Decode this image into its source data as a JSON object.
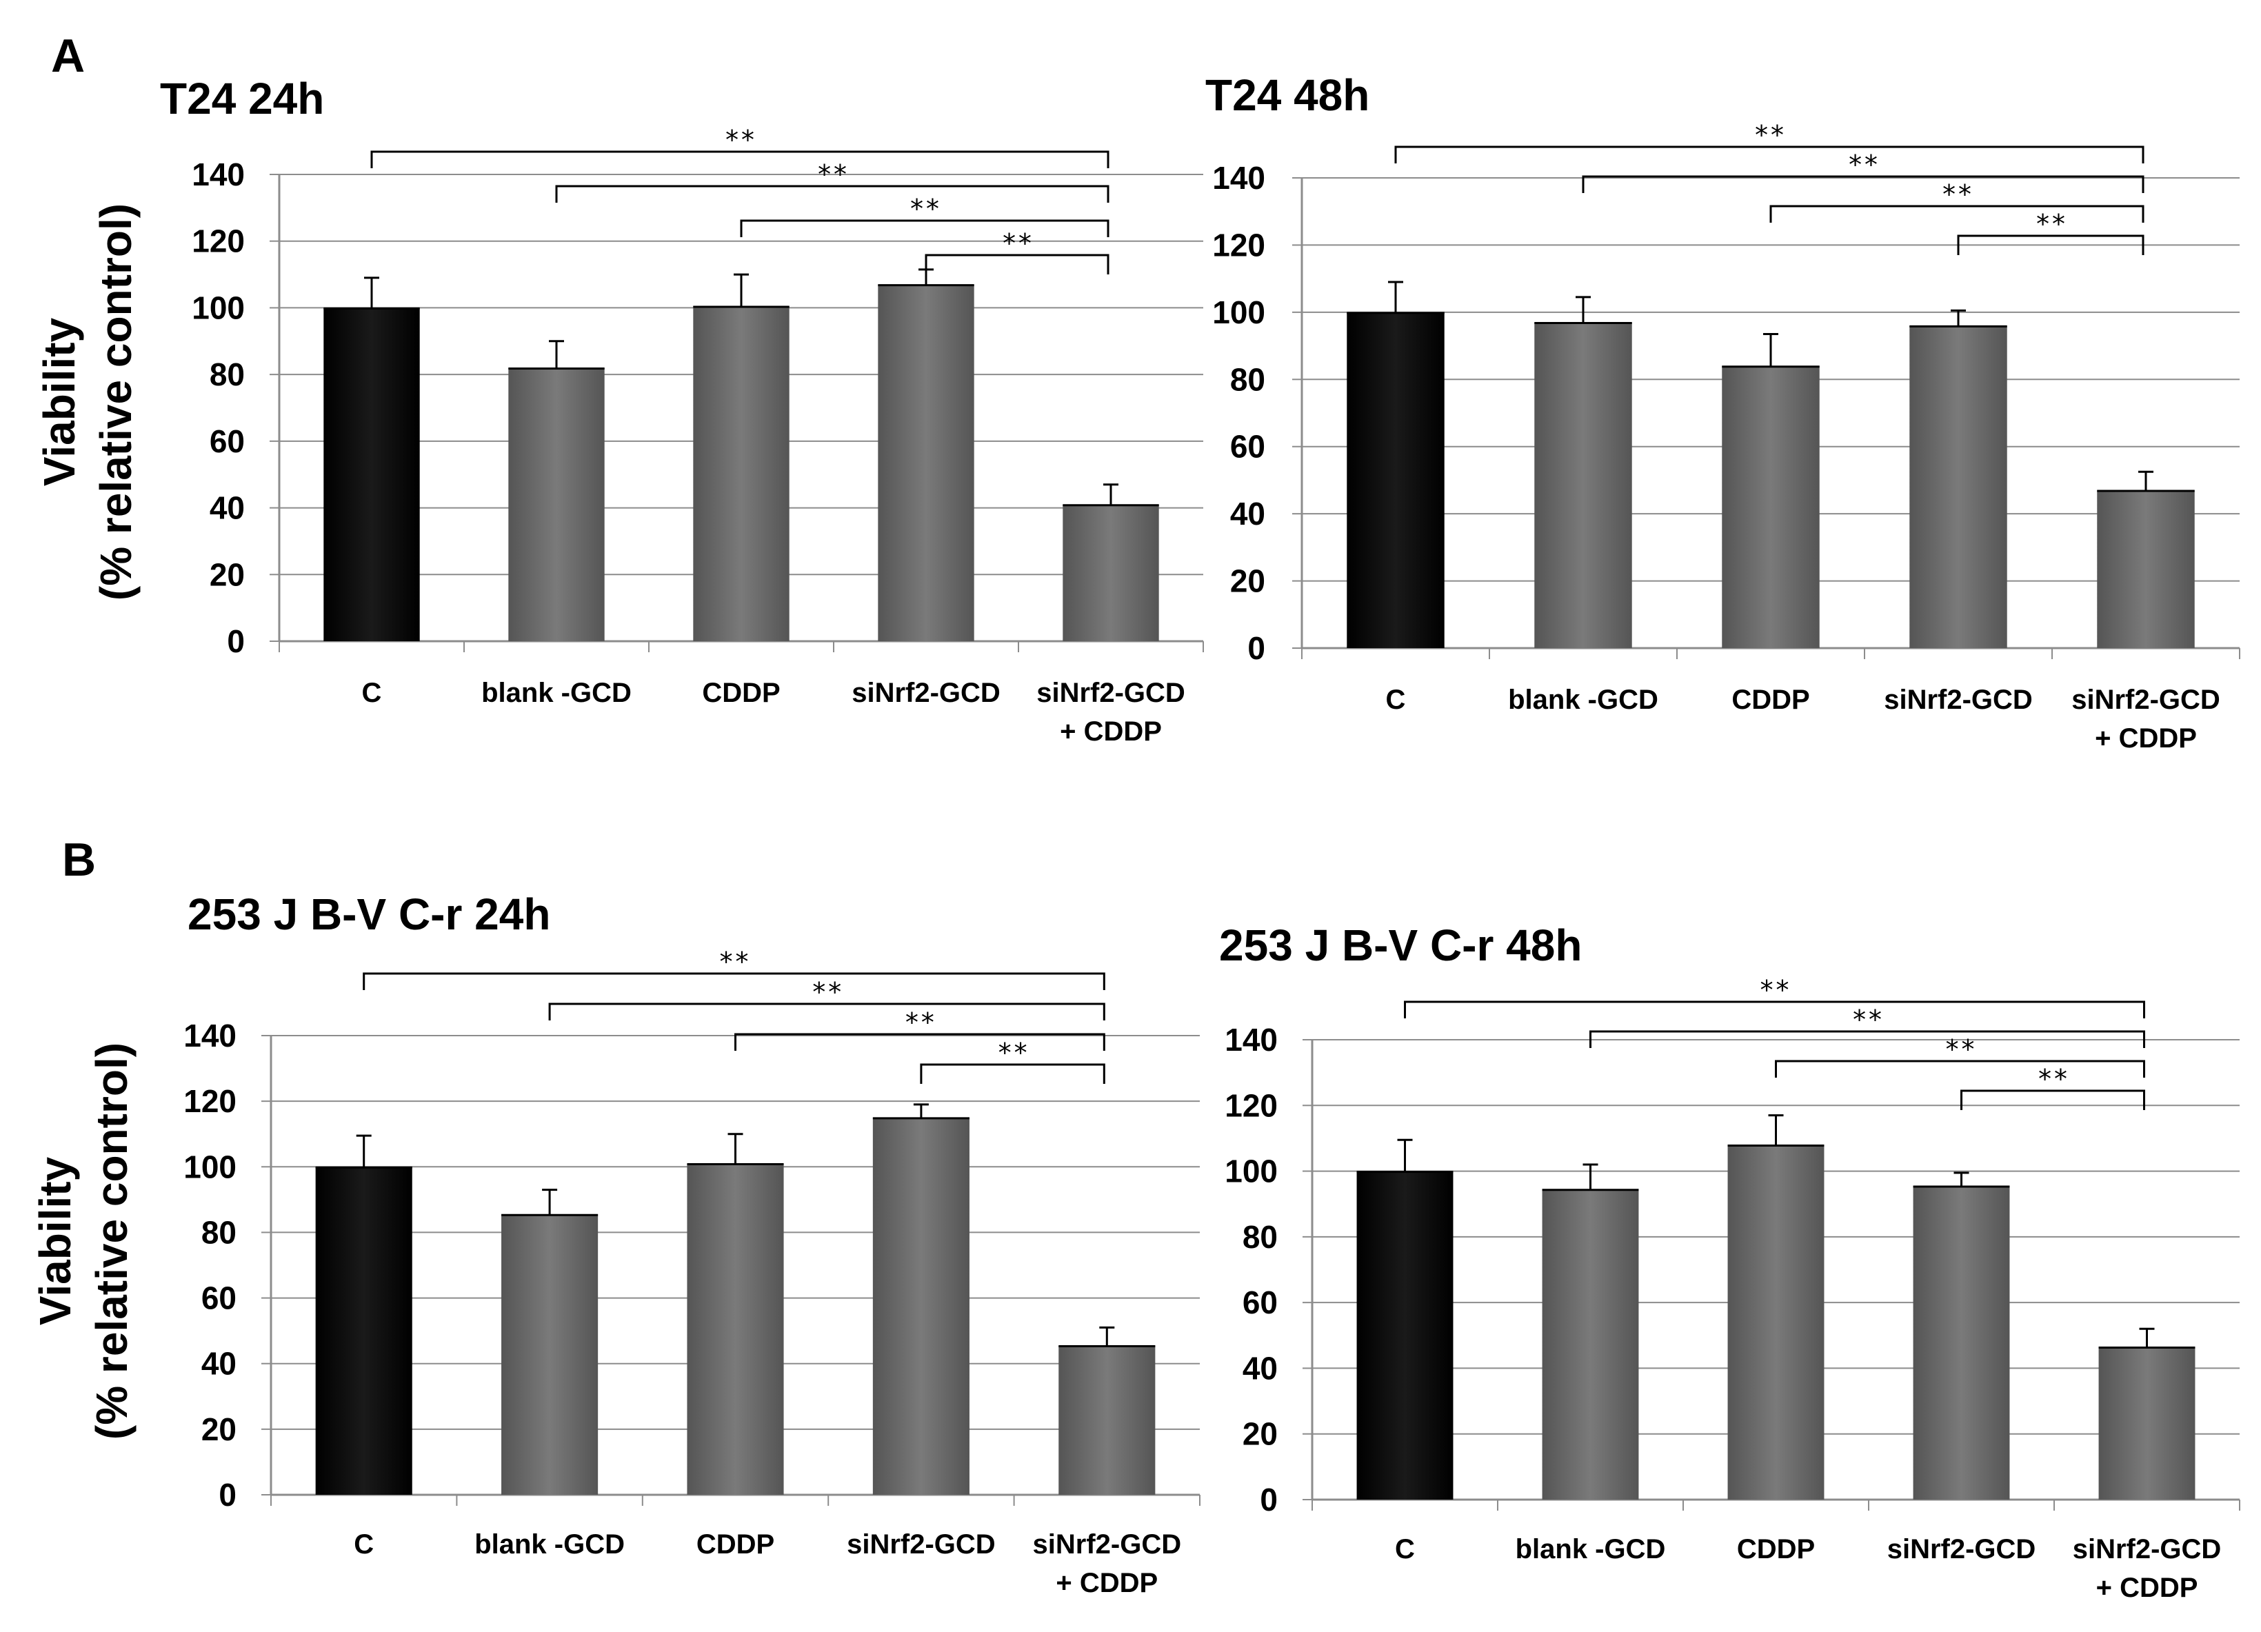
{
  "figure": {
    "panels": [
      {
        "letter": "A"
      },
      {
        "letter": "B"
      }
    ],
    "y_axis_label_line1": "Viability",
    "y_axis_label_line2": "(% relative control)"
  },
  "chart_data": [
    {
      "type": "bar",
      "panel": "A",
      "title": "T24 24h",
      "categories": [
        "C",
        "blank -GCD",
        "CDDP",
        "siNrf2-GCD",
        "siNrf2-GCD\n+ CDDP"
      ],
      "values": [
        100,
        82,
        100.5,
        107,
        41
      ],
      "errors": [
        9,
        8,
        9.5,
        4.5,
        6
      ],
      "ylim": [
        0,
        140
      ],
      "ytick_step": 20,
      "ytick_labels": [
        "0",
        "20",
        "40",
        "60",
        "80",
        "100",
        "120",
        "140"
      ],
      "xlabel": "",
      "ylabel": "Viability (% relative control)",
      "grid": true,
      "colors": [
        "#000000",
        "#6e6e6e",
        "#6e6e6e",
        "#6e6e6e",
        "#6e6e6e"
      ],
      "significance": [
        {
          "from": 0,
          "to": 4,
          "label": "**"
        },
        {
          "from": 1,
          "to": 4,
          "label": "**"
        },
        {
          "from": 2,
          "to": 4,
          "label": "**"
        },
        {
          "from": 3,
          "to": 4,
          "label": "**"
        }
      ]
    },
    {
      "type": "bar",
      "panel": "A",
      "title": "T24 48h",
      "categories": [
        "C",
        "blank -GCD",
        "CDDP",
        "siNrf2-GCD",
        "siNrf2-GCD\n+ CDDP"
      ],
      "values": [
        100,
        97,
        84,
        96,
        47
      ],
      "errors": [
        9,
        7.5,
        9.5,
        4.5,
        5.5
      ],
      "ylim": [
        0,
        140
      ],
      "ytick_step": 20,
      "ytick_labels": [
        "0",
        "20",
        "40",
        "60",
        "80",
        "100",
        "120",
        "140"
      ],
      "xlabel": "",
      "ylabel": "",
      "grid": true,
      "colors": [
        "#000000",
        "#6e6e6e",
        "#6e6e6e",
        "#6e6e6e",
        "#6e6e6e"
      ],
      "significance": [
        {
          "from": 0,
          "to": 4,
          "label": "**"
        },
        {
          "from": 1,
          "to": 4,
          "label": "**"
        },
        {
          "from": 2,
          "to": 4,
          "label": "**"
        },
        {
          "from": 3,
          "to": 4,
          "label": "**"
        }
      ]
    },
    {
      "type": "bar",
      "panel": "B",
      "title": "253 J B-V C-r 24h",
      "categories": [
        "C",
        "blank -GCD",
        "CDDP",
        "siNrf2-GCD",
        "siNrf2-GCD\n+ CDDP"
      ],
      "values": [
        100,
        85.5,
        101,
        115,
        45.5
      ],
      "errors": [
        9.5,
        7.5,
        9,
        4,
        5.5
      ],
      "ylim": [
        0,
        140
      ],
      "ytick_step": 20,
      "ytick_labels": [
        "0",
        "20",
        "40",
        "60",
        "80",
        "100",
        "120",
        "140"
      ],
      "xlabel": "",
      "ylabel": "Viability (% relative control)",
      "grid": true,
      "colors": [
        "#000000",
        "#6e6e6e",
        "#6e6e6e",
        "#6e6e6e",
        "#6e6e6e"
      ],
      "significance": [
        {
          "from": 0,
          "to": 4,
          "label": "**"
        },
        {
          "from": 1,
          "to": 4,
          "label": "**"
        },
        {
          "from": 2,
          "to": 4,
          "label": "**"
        },
        {
          "from": 3,
          "to": 4,
          "label": "**"
        }
      ]
    },
    {
      "type": "bar",
      "panel": "B",
      "title": "253 J B-V C-r 48h",
      "categories": [
        "C",
        "blank -GCD",
        "CDDP",
        "siNrf2-GCD",
        "siNrf2-GCD\n+ CDDP"
      ],
      "values": [
        100,
        94.5,
        108,
        95.5,
        46.5
      ],
      "errors": [
        9.5,
        7.5,
        9,
        4,
        5.5
      ],
      "ylim": [
        0,
        140
      ],
      "ytick_step": 20,
      "ytick_labels": [
        "0",
        "20",
        "40",
        "60",
        "80",
        "100",
        "120",
        "140"
      ],
      "xlabel": "",
      "ylabel": "",
      "grid": true,
      "colors": [
        "#000000",
        "#6e6e6e",
        "#6e6e6e",
        "#6e6e6e",
        "#6e6e6e"
      ],
      "significance": [
        {
          "from": 0,
          "to": 4,
          "label": "**"
        },
        {
          "from": 1,
          "to": 4,
          "label": "**"
        },
        {
          "from": 2,
          "to": 4,
          "label": "**"
        },
        {
          "from": 3,
          "to": 4,
          "label": "**"
        }
      ]
    }
  ]
}
